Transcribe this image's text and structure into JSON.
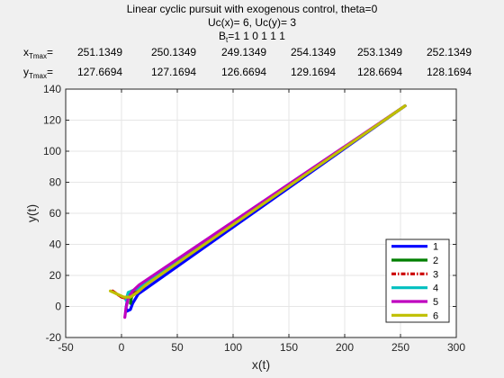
{
  "chart_data": {
    "type": "line",
    "title": "Linear cyclic pursuit with exogenous control, theta=0",
    "subtitle_uc": "Uc(x)= 6, Uc(y)= 3",
    "subtitle_bt": "B<sub class=\"sub\">t</sub>=1  1  0  1  1  1",
    "xlabel": "x(t)",
    "ylabel": "y(t)",
    "xlim": [
      -50,
      300
    ],
    "ylim": [
      -20,
      140
    ],
    "xticks": [
      "-50",
      "0",
      "50",
      "100",
      "150",
      "200",
      "250",
      "300"
    ],
    "yticks": [
      "-20",
      "0",
      "20",
      "40",
      "60",
      "80",
      "100",
      "120",
      "140"
    ],
    "grid": true,
    "legend_position": "bottom-right",
    "xtmax_label": "x<sub class=\"sub\">Tmax</sub>=",
    "ytmax_label": "y<sub class=\"sub\">Tmax</sub>=",
    "xtmax": [
      "251.1349",
      "250.1349",
      "249.1349",
      "254.1349",
      "253.1349",
      "252.1349"
    ],
    "ytmax": [
      "127.6694",
      "127.1694",
      "126.6694",
      "129.1694",
      "128.6694",
      "128.1694"
    ],
    "series": [
      {
        "name": "1",
        "color": "#0000ff",
        "dash": "",
        "x": [
          7,
          5,
          4,
          5,
          8,
          10,
          15,
          254.1
        ],
        "y": [
          8,
          3,
          -1,
          -3,
          -2,
          2,
          8,
          129.2
        ]
      },
      {
        "name": "2",
        "color": "#007f00",
        "dash": "",
        "x": [
          8,
          9,
          11,
          14,
          20,
          254.1
        ],
        "y": [
          2,
          6,
          9,
          11,
          14,
          129.2
        ]
      },
      {
        "name": "3",
        "color": "#cc0000",
        "dash": "5,2,1.5,2",
        "x": [
          -8,
          -4,
          0,
          5,
          10,
          20,
          254.1
        ],
        "y": [
          10,
          8,
          6,
          5,
          7,
          14,
          129.2
        ]
      },
      {
        "name": "4",
        "color": "#00bfbf",
        "dash": "",
        "x": [
          4,
          6,
          9,
          13,
          20,
          254.1
        ],
        "y": [
          4,
          9,
          10,
          11,
          14,
          129.2
        ]
      },
      {
        "name": "5",
        "color": "#bf00bf",
        "dash": "",
        "x": [
          3,
          4,
          6,
          10,
          16,
          254.1
        ],
        "y": [
          -7,
          -1,
          5,
          10,
          14,
          129.2
        ]
      },
      {
        "name": "6",
        "color": "#bfbf00",
        "dash": "",
        "x": [
          -10,
          -4,
          2,
          8,
          14,
          22,
          254.1
        ],
        "y": [
          10,
          8,
          6,
          6,
          9,
          14,
          129.2
        ]
      }
    ]
  }
}
